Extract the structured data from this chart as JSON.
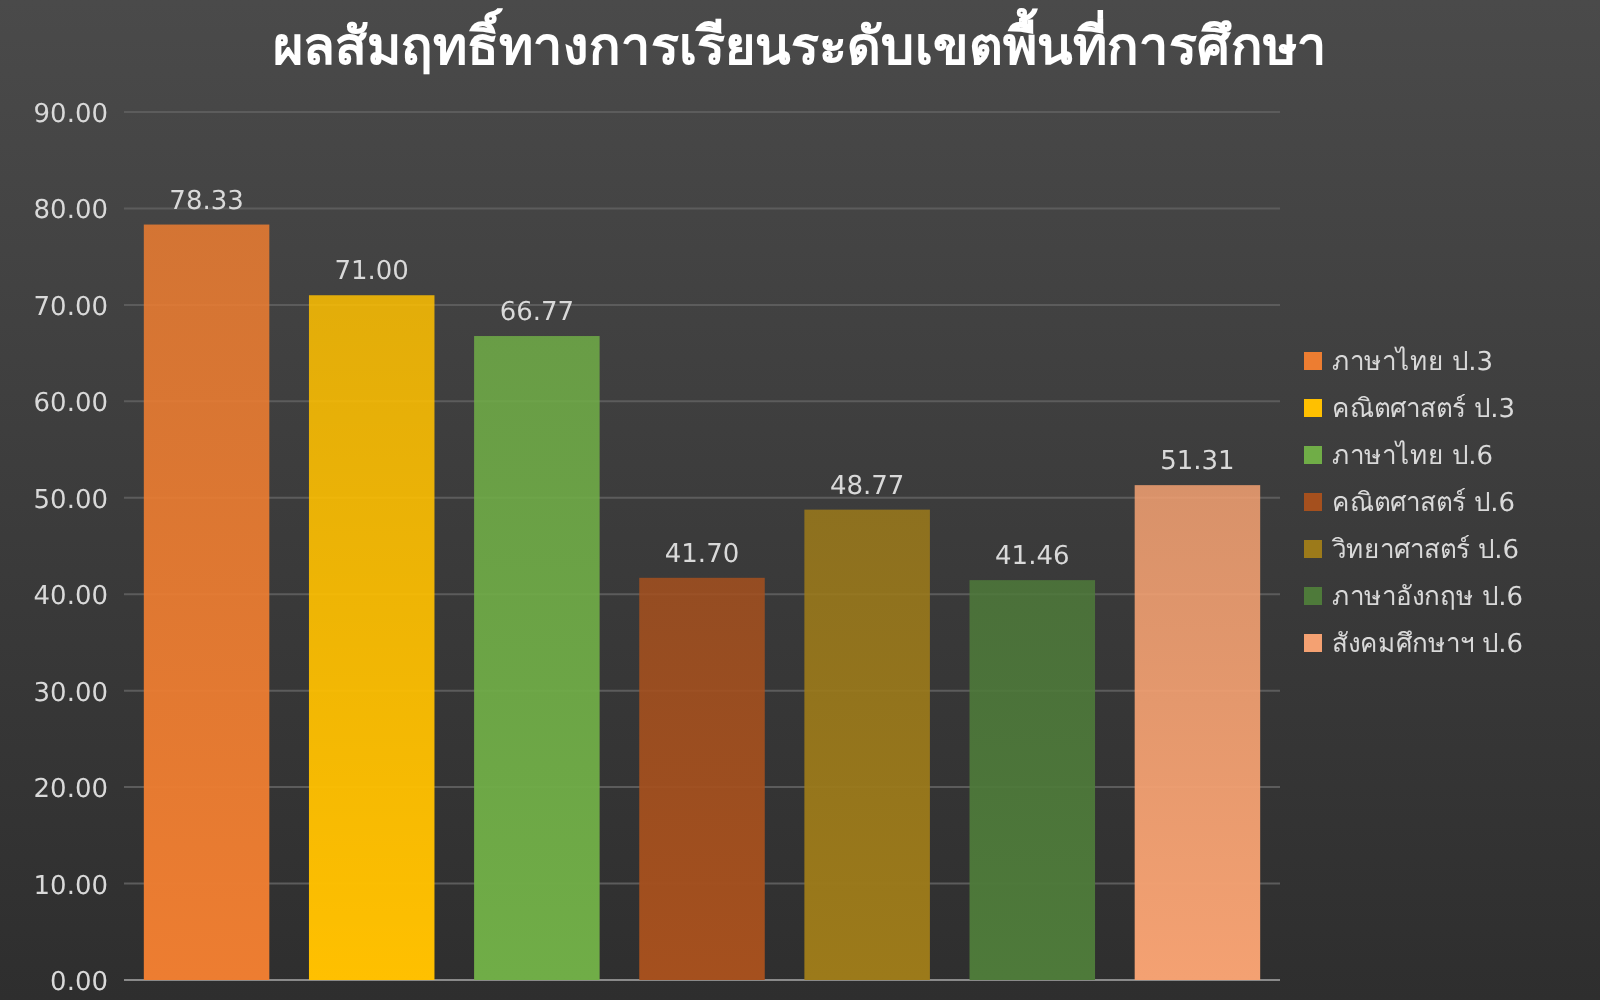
{
  "chart_data": {
    "type": "bar",
    "title": "ผลสัมฤทธิ์ทางการเรียนระดับเขตพื้นที่การศึกษา",
    "categories": [
      null,
      null,
      null,
      null,
      null,
      null,
      null
    ],
    "series": [
      {
        "name": "ภาษาไทย ป.3",
        "color": "#ed7d31",
        "values": [
          78.33,
          null,
          null,
          null,
          null,
          null,
          null
        ],
        "value_labels": [
          "78.33",
          null,
          null,
          null,
          null,
          null,
          null
        ]
      },
      {
        "name": "คณิตศาสตร์ ป.3",
        "color": "#ffc000",
        "values": [
          null,
          71.0,
          null,
          null,
          null,
          null,
          null
        ],
        "value_labels": [
          null,
          "71.00",
          null,
          null,
          null,
          null,
          null
        ]
      },
      {
        "name": "ภาษาไทย ป.6",
        "color": "#70ad47",
        "values": [
          null,
          null,
          66.77,
          null,
          null,
          null,
          null
        ],
        "value_labels": [
          null,
          null,
          "66.77",
          null,
          null,
          null,
          null
        ]
      },
      {
        "name": "คณิตศาสตร์ ป.6",
        "color": "#a5501e",
        "values": [
          null,
          null,
          null,
          41.7,
          null,
          null,
          null
        ],
        "value_labels": [
          null,
          null,
          null,
          "41.70",
          null,
          null,
          null
        ]
      },
      {
        "name": "วิทยาศาสตร์ ป.6",
        "color": "#9c7a1a",
        "values": [
          null,
          null,
          null,
          null,
          48.77,
          null,
          null
        ],
        "value_labels": [
          null,
          null,
          null,
          null,
          "48.77",
          null,
          null
        ]
      },
      {
        "name": "ภาษาอังกฤษ ป.6",
        "color": "#4e7a3a",
        "values": [
          null,
          null,
          null,
          null,
          null,
          41.46,
          null
        ],
        "value_labels": [
          null,
          null,
          null,
          null,
          null,
          "41.46",
          null
        ]
      },
      {
        "name": "สังคมศึกษาฯ ป.6",
        "color": "#f4a172",
        "values": [
          null,
          null,
          null,
          null,
          null,
          null,
          51.31
        ],
        "value_labels": [
          null,
          null,
          null,
          null,
          null,
          null,
          "51.31"
        ]
      }
    ],
    "ylim": [
      0,
      90
    ],
    "yticks": [
      {
        "value": 0,
        "label": "0.00"
      },
      {
        "value": 10,
        "label": "10.00"
      },
      {
        "value": 20,
        "label": "20.00"
      },
      {
        "value": 30,
        "label": "30.00"
      },
      {
        "value": 40,
        "label": "40.00"
      },
      {
        "value": 50,
        "label": "50.00"
      },
      {
        "value": 60,
        "label": "60.00"
      },
      {
        "value": 70,
        "label": "70.00"
      },
      {
        "value": 80,
        "label": "80.00"
      },
      {
        "value": 90,
        "label": "90.00"
      }
    ],
    "grid": "y",
    "legend": "right"
  }
}
